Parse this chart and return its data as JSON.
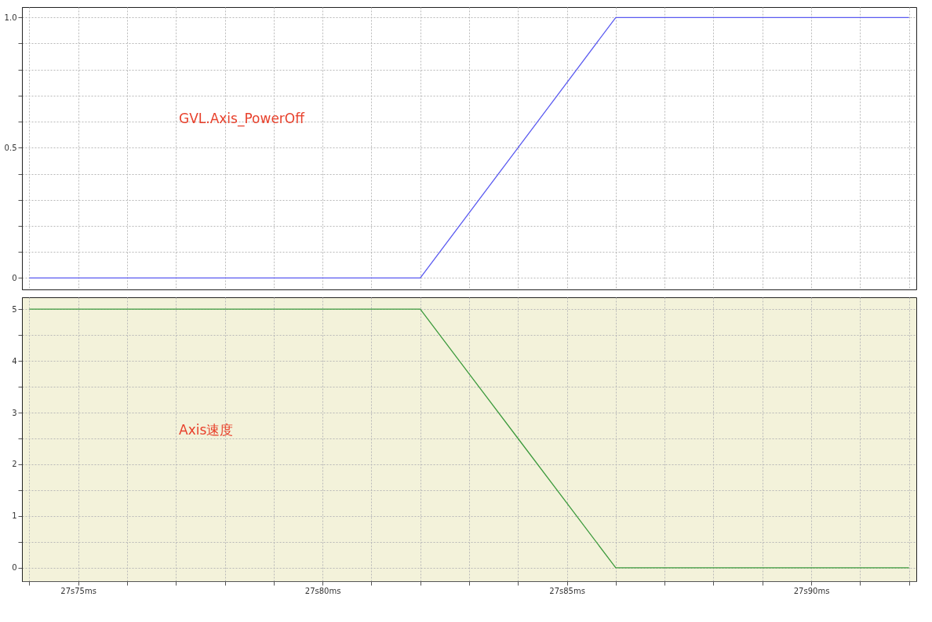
{
  "chart_data": [
    {
      "type": "line",
      "annotations": [
        "GVL.Axis_PowerOff"
      ],
      "tick_labels": "y",
      "grid": true,
      "line_style": "solid",
      "categories": [
        null,
        null,
        null,
        null,
        null,
        null,
        null,
        null,
        null,
        null,
        null,
        null,
        null,
        null,
        null,
        null,
        null,
        null,
        null
      ],
      "series": [
        {
          "color": "#5a5af0",
          "values": [
            0,
            0,
            0,
            0,
            0,
            0,
            0,
            0,
            0,
            0.25,
            0.5,
            0.75,
            1,
            1,
            1,
            1,
            1,
            1,
            1
          ]
        }
      ],
      "ylim": [
        -0.044,
        1.04
      ],
      "yticks": [
        0,
        {
          "value": 0.1,
          "label": null
        },
        {
          "value": 0.2,
          "label": null
        },
        {
          "value": 0.3,
          "label": null
        },
        {
          "value": 0.4,
          "label": null
        },
        0.5,
        {
          "value": 0.6,
          "label": null
        },
        {
          "value": 0.7,
          "label": null
        },
        {
          "value": 0.8,
          "label": null
        },
        {
          "value": 0.9,
          "label": null
        },
        {
          "value": 1,
          "label": "1.0"
        }
      ]
    },
    {
      "type": "line",
      "annotations": [
        "Axis速度"
      ],
      "grid": true,
      "line_style": "solid",
      "categories": [
        null,
        "27s75ms",
        null,
        null,
        null,
        null,
        "27s80ms",
        null,
        null,
        null,
        null,
        "27s85ms",
        null,
        null,
        null,
        null,
        "27s90ms",
        null,
        null
      ],
      "series": [
        {
          "color": "#3c9a3c",
          "values": [
            5,
            5,
            5,
            5,
            5,
            5,
            5,
            5,
            5,
            3.75,
            2.5,
            1.25,
            0,
            0,
            0,
            0,
            0,
            0,
            0
          ]
        }
      ],
      "ylim": [
        -0.26,
        5.23
      ],
      "yticks": [
        0,
        {
          "value": 0.5,
          "label": null
        },
        1,
        {
          "value": 1.5,
          "label": null
        },
        2,
        {
          "value": 2.5,
          "label": null
        },
        3,
        {
          "value": 3.5,
          "label": null
        },
        4,
        {
          "value": 4.5,
          "label": null
        },
        5
      ]
    }
  ]
}
